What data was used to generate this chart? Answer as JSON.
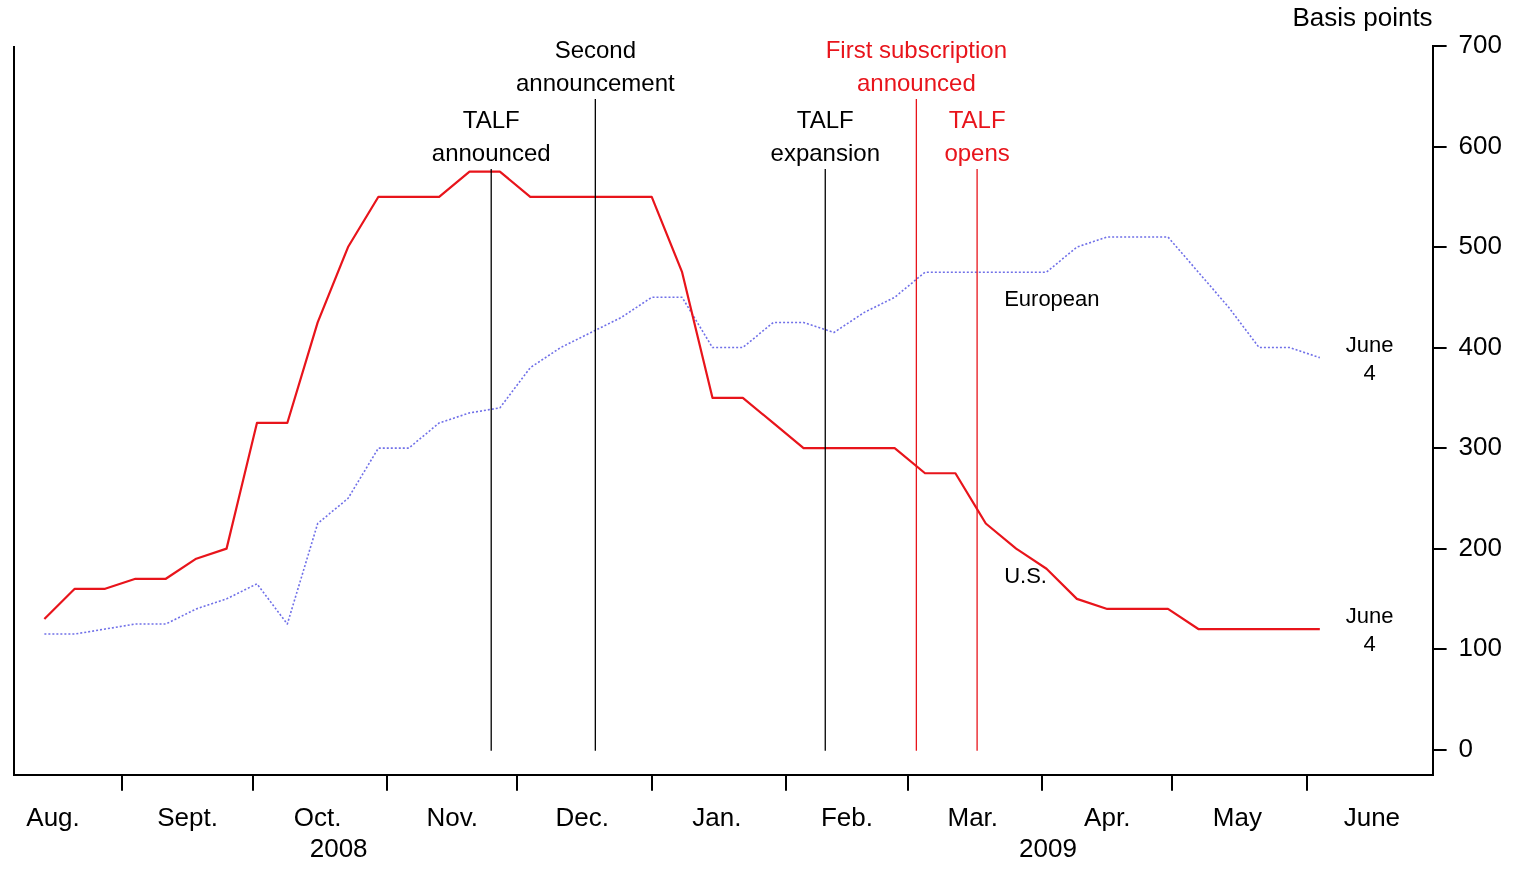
{
  "chart_data": {
    "type": "line",
    "ylabel": "Basis points",
    "x": [
      "2008-08-14",
      "2008-08-21",
      "2008-08-28",
      "2008-09-04",
      "2008-09-11",
      "2008-09-18",
      "2008-09-25",
      "2008-10-02",
      "2008-10-09",
      "2008-10-16",
      "2008-10-23",
      "2008-10-30",
      "2008-11-06",
      "2008-11-13",
      "2008-11-20",
      "2008-11-27",
      "2008-12-04",
      "2008-12-11",
      "2008-12-18",
      "2008-12-25",
      "2009-01-01",
      "2009-01-08",
      "2009-01-15",
      "2009-01-22",
      "2009-01-29",
      "2009-02-05",
      "2009-02-12",
      "2009-02-19",
      "2009-02-26",
      "2009-03-05",
      "2009-03-12",
      "2009-03-19",
      "2009-03-26",
      "2009-04-02",
      "2009-04-09",
      "2009-04-16",
      "2009-04-23",
      "2009-04-30",
      "2009-05-07",
      "2009-05-14",
      "2009-05-21",
      "2009-05-28",
      "2009-06-04"
    ],
    "series": [
      {
        "name": "U.S.",
        "color": "#e8141b",
        "line_style": "solid",
        "values": [
          130,
          160,
          160,
          170,
          170,
          190,
          200,
          325,
          325,
          425,
          500,
          550,
          550,
          550,
          575,
          575,
          550,
          550,
          550,
          550,
          550,
          475,
          350,
          350,
          325,
          300,
          300,
          300,
          300,
          275,
          275,
          225,
          200,
          180,
          150,
          140,
          140,
          140,
          120,
          120,
          120,
          120,
          120
        ]
      },
      {
        "name": "European",
        "color": "#7070e8",
        "line_style": "dotted",
        "values": [
          115,
          115,
          120,
          125,
          125,
          140,
          150,
          165,
          125,
          225,
          250,
          300,
          300,
          325,
          335,
          340,
          380,
          400,
          415,
          430,
          450,
          450,
          400,
          400,
          425,
          425,
          415,
          435,
          450,
          475,
          475,
          475,
          475,
          475,
          500,
          510,
          510,
          510,
          475,
          440,
          400,
          400,
          390
        ]
      }
    ],
    "xlim": [
      "2008-08-07",
      "2009-06-30"
    ],
    "xticks": [
      {
        "value": "2008-08-16",
        "label": "Aug."
      },
      {
        "value": "2008-09-01",
        "label": null
      },
      {
        "value": "2008-09-16",
        "label": "Sept."
      },
      {
        "value": "2008-10-01",
        "label": null
      },
      {
        "value": "2008-10-16",
        "label": "Oct."
      },
      {
        "value": "2008-11-01",
        "label": null
      },
      {
        "value": "2008-11-16",
        "label": "Nov."
      },
      {
        "value": "2008-12-01",
        "label": null
      },
      {
        "value": "2008-12-16",
        "label": "Dec."
      },
      {
        "value": "2009-01-01",
        "label": null
      },
      {
        "value": "2009-01-16",
        "label": "Jan."
      },
      {
        "value": "2009-02-01",
        "label": null
      },
      {
        "value": "2009-02-15",
        "label": "Feb."
      },
      {
        "value": "2009-03-01",
        "label": null
      },
      {
        "value": "2009-03-16",
        "label": "Mar."
      },
      {
        "value": "2009-04-01",
        "label": null
      },
      {
        "value": "2009-04-16",
        "label": "Apr."
      },
      {
        "value": "2009-05-01",
        "label": null
      },
      {
        "value": "2009-05-16",
        "label": "May"
      },
      {
        "value": "2009-06-01",
        "label": null
      },
      {
        "value": "2009-06-16",
        "label": "June"
      }
    ],
    "ylim": [
      -25,
      700
    ],
    "yticks": [
      0,
      100,
      200,
      300,
      400,
      500,
      600,
      700
    ],
    "ref_lines": [
      {
        "axis": "x",
        "value": "2008-11-25",
        "label": "TALF\nannounced",
        "color": "#000000"
      },
      {
        "axis": "x",
        "value": "2008-12-19",
        "label": "Second\nannouncement",
        "color": "#000000"
      },
      {
        "axis": "x",
        "value": "2009-02-10",
        "label": "TALF\nexpansion",
        "color": "#000000"
      },
      {
        "axis": "x",
        "value": "2009-03-03",
        "label": "First subscription\nannounced",
        "color": "#e8141b"
      },
      {
        "axis": "x",
        "value": "2009-03-17",
        "label": "TALF\nopens",
        "color": "#e8141b"
      }
    ],
    "annotations": [
      {
        "text": "June\n4",
        "x": "2009-06-04",
        "y": 390
      },
      {
        "text": "June\n4",
        "x": "2009-06-04",
        "y": 120
      },
      "2008",
      "2009"
    ],
    "grid": false,
    "legend": false
  }
}
